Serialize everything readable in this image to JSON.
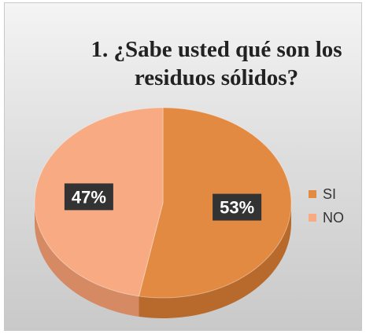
{
  "chart_data": {
    "type": "pie",
    "title": "1. ¿Sabe usted qué son los residuos sólidos?",
    "slices": [
      {
        "label": "SI",
        "value": 53,
        "display": "53%",
        "color": "#E28A42",
        "side_color": "#B86A2C"
      },
      {
        "label": "NO",
        "value": 47,
        "display": "47%",
        "color": "#F8AA82",
        "side_color": "#D58A63"
      }
    ],
    "legend_position": "right",
    "data_label_style": {
      "background": "#333333",
      "color": "#ffffff"
    }
  }
}
